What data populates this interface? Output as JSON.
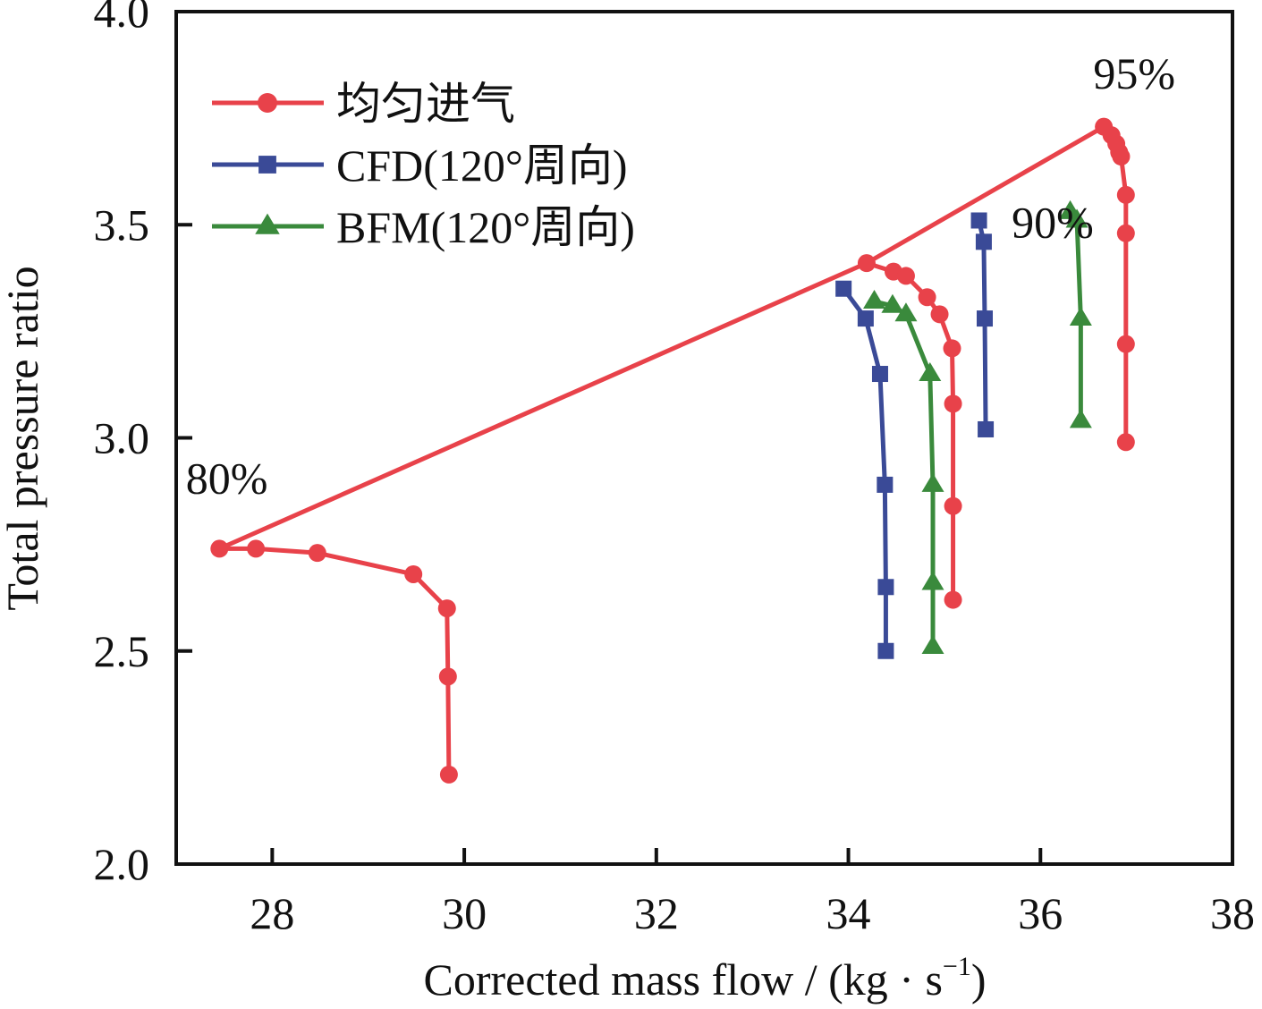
{
  "chart_data": {
    "type": "line",
    "title": "",
    "xlabel": "Corrected mass flow / (kg · s",
    "xlabel_sup": "−1",
    "xlabel_close": ")",
    "ylabel": "Total pressure ratio",
    "xlim": [
      27,
      38
    ],
    "ylim": [
      2.0,
      4.0
    ],
    "xticks": [
      28,
      30,
      32,
      34,
      36,
      38
    ],
    "xtick_labels": [
      "28",
      "30",
      "32",
      "34",
      "36",
      "38"
    ],
    "yticks": [
      2.0,
      2.5,
      3.0,
      3.5,
      4.0
    ],
    "ytick_labels": [
      "2.0",
      "2.5",
      "3.0",
      "3.5",
      "4.0"
    ],
    "grid": false,
    "legend_position": "top-left",
    "series": [
      {
        "name": "均匀进气",
        "marker": "circle",
        "color": "#E8424A",
        "speed_lines": [
          {
            "speed": "80%",
            "x": [
              27.45,
              27.83,
              28.47,
              29.47,
              29.82,
              29.83,
              29.84
            ],
            "y": [
              2.74,
              2.74,
              2.73,
              2.68,
              2.6,
              2.44,
              2.21
            ]
          },
          {
            "speed": "90%",
            "x": [
              34.19,
              34.47,
              34.6,
              34.82,
              34.95,
              35.08,
              35.09,
              35.09,
              35.09
            ],
            "y": [
              3.41,
              3.39,
              3.38,
              3.33,
              3.29,
              3.21,
              3.08,
              2.84,
              2.62
            ]
          },
          {
            "speed": "95%",
            "x": [
              36.66,
              36.74,
              36.79,
              36.82,
              36.84,
              36.89,
              36.89,
              36.89,
              36.89
            ],
            "y": [
              3.73,
              3.71,
              3.69,
              3.67,
              3.66,
              3.57,
              3.48,
              3.22,
              2.99
            ]
          }
        ],
        "surge_line": {
          "x": [
            27.45,
            34.19,
            36.66
          ],
          "y": [
            2.74,
            3.41,
            3.73
          ]
        }
      },
      {
        "name": "CFD(120°周向)",
        "marker": "square",
        "color": "#3A4A97",
        "speed_lines": [
          {
            "speed": "90%",
            "x": [
              33.95,
              34.18,
              34.33,
              34.38,
              34.39,
              34.39
            ],
            "y": [
              3.35,
              3.28,
              3.15,
              2.89,
              2.65,
              2.5
            ]
          },
          {
            "speed": "95%",
            "x": [
              35.36,
              35.41,
              35.42,
              35.43
            ],
            "y": [
              3.51,
              3.46,
              3.28,
              3.02
            ]
          }
        ]
      },
      {
        "name": "BFM(120°周向)",
        "marker": "triangle",
        "color": "#3A8A3C",
        "speed_lines": [
          {
            "speed": "90%",
            "x": [
              34.27,
              34.46,
              34.6,
              34.85,
              34.88,
              34.88,
              34.88
            ],
            "y": [
              3.32,
              3.31,
              3.29,
              3.15,
              2.89,
              2.66,
              2.51
            ]
          },
          {
            "speed": "95%",
            "x": [
              36.31,
              36.38,
              36.42,
              36.42
            ],
            "y": [
              3.53,
              3.51,
              3.28,
              3.04
            ]
          }
        ]
      }
    ],
    "annotations": [
      {
        "text": "80%",
        "x": 27.1,
        "y": 2.87
      },
      {
        "text": "90%",
        "x": 35.7,
        "y": 3.47
      },
      {
        "text": "95%",
        "x": 36.55,
        "y": 3.82
      }
    ]
  }
}
